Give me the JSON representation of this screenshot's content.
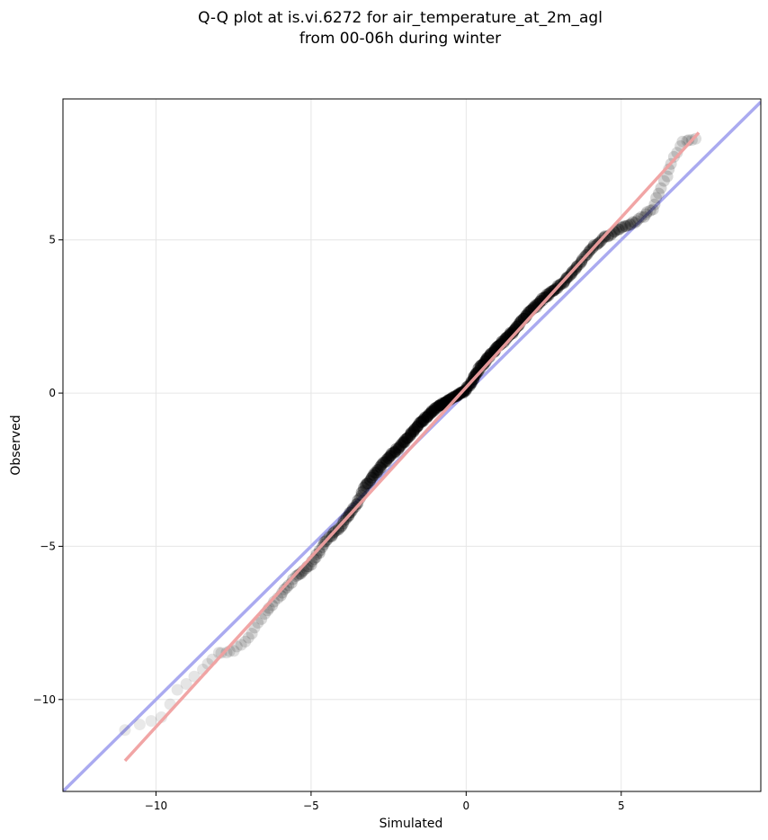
{
  "chart_data": {
    "type": "scatter",
    "title_lines": [
      "Q-Q plot at is.vi.6272 for air_temperature_at_2m_agl",
      "from 00-06h during winter"
    ],
    "xlabel": "Simulated",
    "ylabel": "Observed",
    "xlim": [
      -13.0,
      9.5
    ],
    "ylim": [
      -13.0,
      9.6
    ],
    "xticks": [
      -10,
      -5,
      0,
      5
    ],
    "yticks": [
      -10,
      -5,
      0,
      5
    ],
    "xtick_labels": [
      "−10",
      "−5",
      "0",
      "5"
    ],
    "ytick_labels": [
      "−10",
      "−5",
      "0",
      "5"
    ],
    "grid": true,
    "legend": "none",
    "reference_line": {
      "name": "1:1 line",
      "color": "#aaaaf0",
      "from": [
        -13.0,
        -13.0
      ],
      "to": [
        9.5,
        9.5
      ]
    },
    "fit_line": {
      "name": "fit",
      "color": "#f0a0a0",
      "from": [
        -11.0,
        -12.0
      ],
      "to": [
        7.5,
        8.5
      ]
    },
    "point_color": "#000000",
    "qq_knots": [
      [
        -11.0,
        -11.0
      ],
      [
        -10.5,
        -10.8
      ],
      [
        -9.8,
        -10.6
      ],
      [
        -9.3,
        -9.7
      ],
      [
        -8.5,
        -9.0
      ],
      [
        -8.0,
        -8.5
      ],
      [
        -7.5,
        -8.4
      ],
      [
        -7.0,
        -8.0
      ],
      [
        -6.5,
        -7.2
      ],
      [
        -6.0,
        -6.6
      ],
      [
        -5.5,
        -6.0
      ],
      [
        -5.0,
        -5.6
      ],
      [
        -4.5,
        -4.8
      ],
      [
        -4.0,
        -4.3
      ],
      [
        -3.5,
        -3.6
      ],
      [
        -3.3,
        -3.1
      ],
      [
        -3.0,
        -2.7
      ],
      [
        -2.5,
        -2.1
      ],
      [
        -2.0,
        -1.6
      ],
      [
        -1.5,
        -1.0
      ],
      [
        -1.0,
        -0.5
      ],
      [
        -0.5,
        -0.2
      ],
      [
        0.0,
        0.1
      ],
      [
        0.5,
        0.9
      ],
      [
        1.0,
        1.5
      ],
      [
        1.5,
        2.0
      ],
      [
        2.0,
        2.6
      ],
      [
        2.5,
        3.1
      ],
      [
        3.0,
        3.5
      ],
      [
        3.5,
        4.0
      ],
      [
        4.0,
        4.7
      ],
      [
        4.5,
        5.1
      ],
      [
        5.0,
        5.4
      ],
      [
        5.5,
        5.6
      ],
      [
        6.0,
        6.0
      ],
      [
        6.3,
        6.7
      ],
      [
        6.7,
        7.7
      ],
      [
        7.0,
        8.2
      ],
      [
        7.4,
        8.3
      ]
    ]
  }
}
